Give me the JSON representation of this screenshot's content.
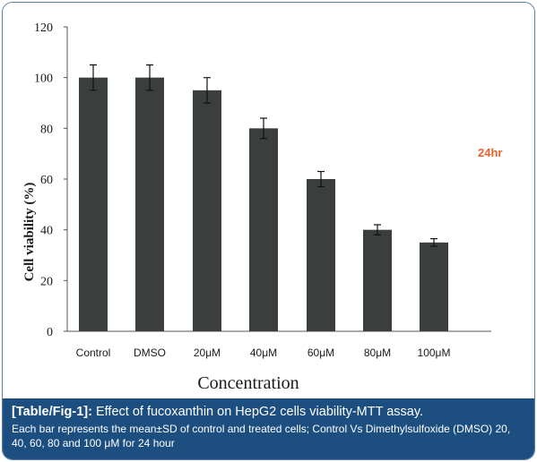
{
  "chart_data": {
    "type": "bar",
    "categories": [
      "Control",
      "DMSO",
      "20μM",
      "40μM",
      "60μM",
      "80μM",
      "100μM"
    ],
    "values": [
      100,
      100,
      95,
      80,
      60,
      40,
      35
    ],
    "errors": [
      5,
      5,
      5,
      4,
      3,
      2,
      1.5
    ],
    "ylim": [
      0,
      120
    ],
    "yticks": [
      0,
      20,
      40,
      60,
      80,
      100,
      120
    ],
    "xlabel": "Concentration",
    "ylabel": "Cell viability (%)",
    "annotation": "24hr",
    "bar_color": "#3a3f3d",
    "annotation_color": "#e5622c",
    "grid": false
  },
  "caption": {
    "tag": "[Table/Fig-1]:",
    "title": "Effect of fucoxanthin on HepG2 cells viability-MTT assay.",
    "description": "Each bar represents the mean±SD of control and treated cells; Control Vs Dimethylsulfoxide (DMSO) 20, 40, 60, 80 and 100 μM for 24 hour",
    "background": "#1c4e80"
  }
}
